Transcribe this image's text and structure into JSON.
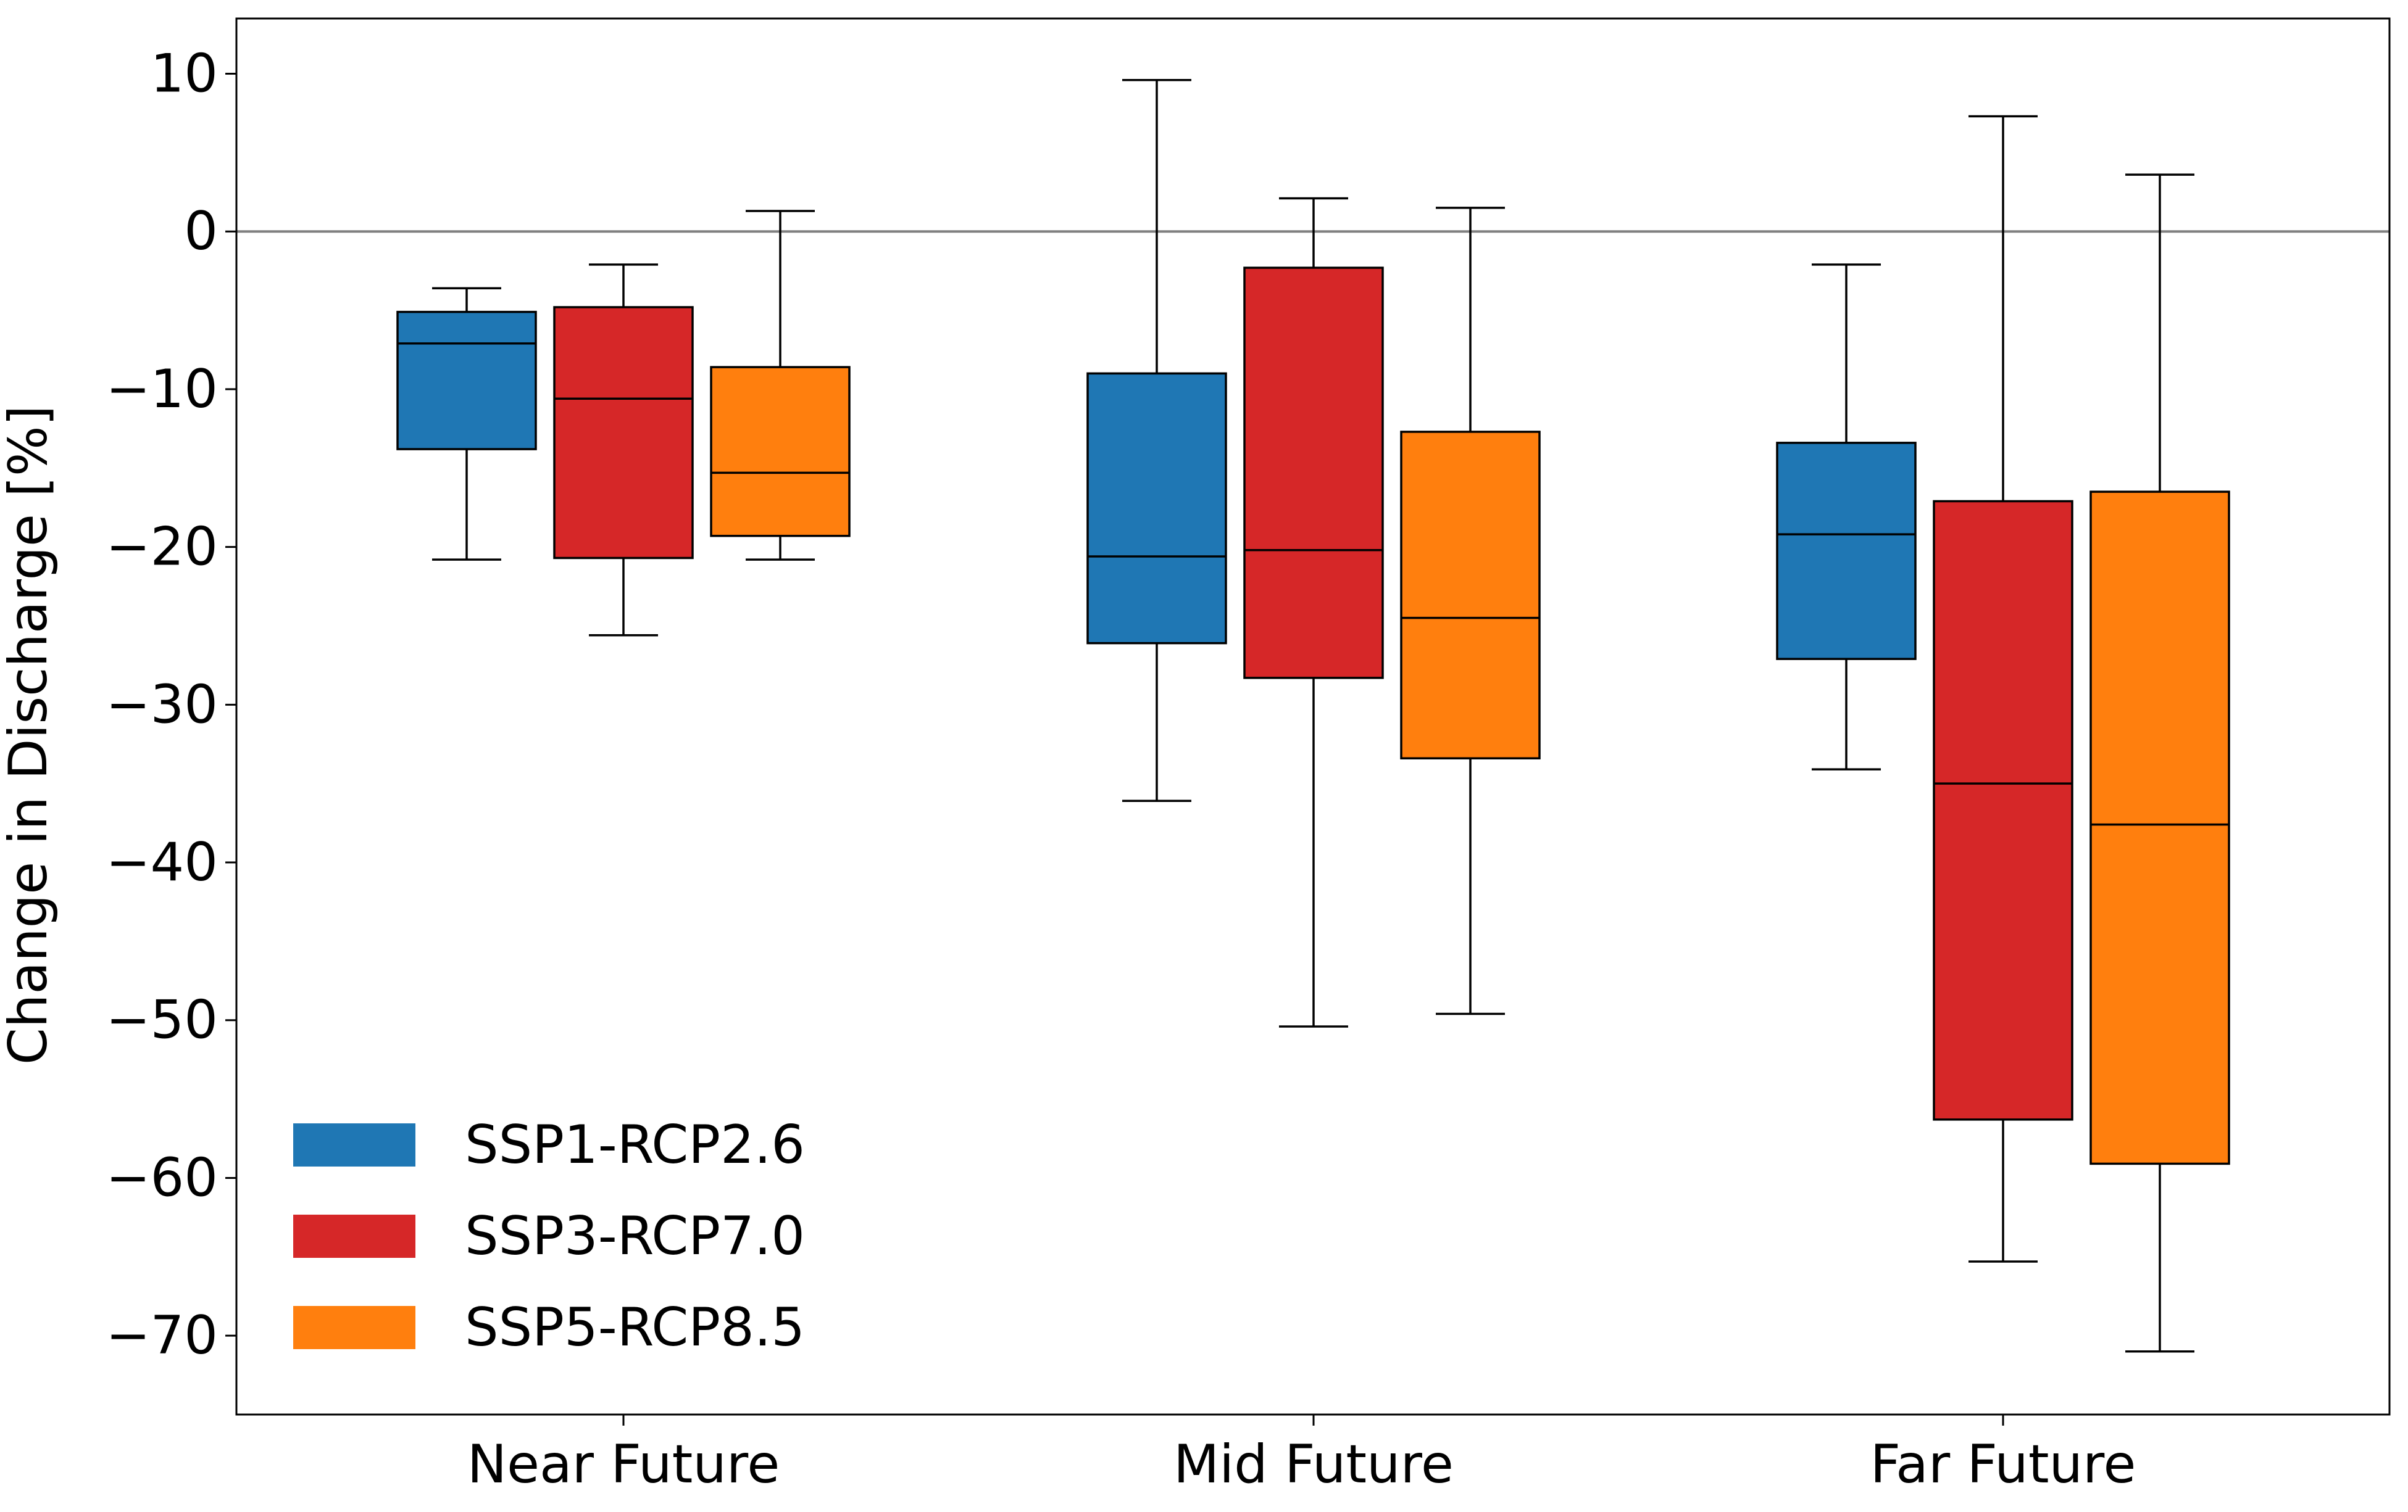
{
  "chart_data": {
    "type": "box",
    "title": "",
    "xlabel": "",
    "ylabel": "Change in Discharge [%]",
    "ylim": [
      -75,
      13.5
    ],
    "yticks": [
      10,
      0,
      -10,
      -20,
      -30,
      -40,
      -50,
      -60,
      -70
    ],
    "ytick_labels": [
      "10",
      "0",
      "−10",
      "−20",
      "−30",
      "−40",
      "−50",
      "−60",
      "−70"
    ],
    "categories": [
      "Near Future",
      "Mid Future",
      "Far Future"
    ],
    "reference_line": 0,
    "grid": false,
    "legend_position": "lower-left",
    "series": [
      {
        "name": "SSP1-RCP2.6",
        "color": "#1f77b4",
        "boxes": [
          {
            "whisker_low": -20.8,
            "q1": -13.8,
            "median": -7.1,
            "q3": -5.1,
            "whisker_high": -3.6
          },
          {
            "whisker_low": -36.1,
            "q1": -26.1,
            "median": -20.6,
            "q3": -9.0,
            "whisker_high": 9.6
          },
          {
            "whisker_low": -34.1,
            "q1": -27.1,
            "median": -19.2,
            "q3": -13.4,
            "whisker_high": -2.1
          }
        ]
      },
      {
        "name": "SSP3-RCP7.0",
        "color": "#d62728",
        "boxes": [
          {
            "whisker_low": -25.6,
            "q1": -20.7,
            "median": -10.6,
            "q3": -4.8,
            "whisker_high": -2.1
          },
          {
            "whisker_low": -50.4,
            "q1": -28.3,
            "median": -20.2,
            "q3": -2.3,
            "whisker_high": 2.1
          },
          {
            "whisker_low": -65.3,
            "q1": -56.3,
            "median": -35.0,
            "q3": -17.1,
            "whisker_high": 7.3
          }
        ]
      },
      {
        "name": "SSP5-RCP8.5",
        "color": "#ff7f0e",
        "boxes": [
          {
            "whisker_low": -20.8,
            "q1": -19.3,
            "median": -15.3,
            "q3": -8.6,
            "whisker_high": 1.3
          },
          {
            "whisker_low": -49.6,
            "q1": -33.4,
            "median": -24.5,
            "q3": -12.7,
            "whisker_high": 1.5
          },
          {
            "whisker_low": -71.0,
            "q1": -59.1,
            "median": -37.6,
            "q3": -16.5,
            "whisker_high": 3.6
          }
        ]
      }
    ]
  }
}
